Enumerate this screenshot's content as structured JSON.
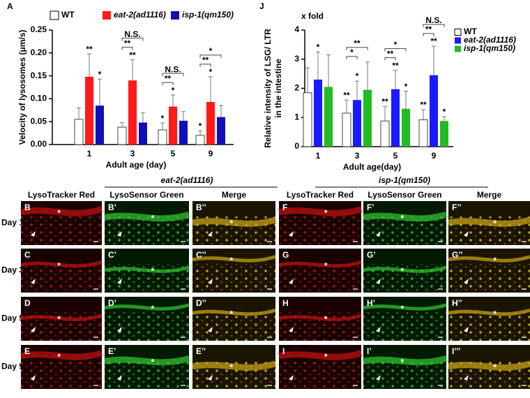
{
  "chart_data": [
    {
      "type": "bar",
      "panel": "A",
      "y_label": "Velocity of lysosomes (μm/s)",
      "x_label": "Adult age (day)",
      "categories": [
        "1",
        "3",
        "5",
        "9"
      ],
      "ylim": [
        0,
        0.25
      ],
      "yticks": [
        {
          "value": 0,
          "label": "0.00"
        },
        {
          "value": 0.05,
          "label": "0.05"
        },
        {
          "value": 0.1,
          "label": "0.10"
        },
        {
          "value": 0.15,
          "label": "0.15"
        },
        {
          "value": 0.2,
          "label": "0.20"
        },
        {
          "value": 0.25,
          "label": "0.25"
        }
      ],
      "legend": "top",
      "series": [
        {
          "name": "WT",
          "color": "#ffffff",
          "values": [
            0.055,
            0.038,
            0.032,
            0.02
          ],
          "errors": [
            0.025,
            0.01,
            0.015,
            0.01
          ],
          "stars": [
            null,
            null,
            "*",
            "*"
          ]
        },
        {
          "name": "eat-2(ad1116)",
          "color": "#ff1a1a",
          "values": [
            0.148,
            0.14,
            0.083,
            0.093
          ],
          "errors": [
            0.05,
            0.045,
            0.025,
            0.055
          ],
          "stars": [
            "**",
            "**",
            "*",
            "*"
          ]
        },
        {
          "name": "isp-1(qm150)",
          "color": "#1010b8",
          "values": [
            0.085,
            0.048,
            0.052,
            0.06
          ],
          "errors": [
            0.058,
            0.022,
            0.02,
            0.025
          ],
          "stars": [
            "*",
            null,
            null,
            null
          ]
        }
      ],
      "brackets": [
        {
          "category": "3",
          "from": "WT",
          "to": "eat-2(ad1116)",
          "label": "**"
        },
        {
          "category": "3",
          "from": "WT",
          "to": "isp-1(qm150)",
          "label": "N.S."
        },
        {
          "category": "5",
          "from": "WT",
          "to": "eat-2(ad1116)",
          "label": "**"
        },
        {
          "category": "5",
          "from": "WT",
          "to": "isp-1(qm150)",
          "label": "N.S."
        },
        {
          "category": "9",
          "from": "WT",
          "to": "eat-2(ad1116)",
          "label": "**"
        },
        {
          "category": "9",
          "from": "WT",
          "to": "isp-1(qm150)",
          "label": "*"
        }
      ]
    },
    {
      "type": "bar",
      "panel": "J",
      "annotation": "x fold",
      "y_label": [
        "Relative intensity of LSG/ LTR",
        "in the intestine"
      ],
      "x_label": "Adult  age(day)",
      "categories": [
        "1",
        "3",
        "5",
        "9"
      ],
      "ylim": [
        0,
        4
      ],
      "yticks": [
        0,
        1,
        2,
        3,
        4
      ],
      "legend": "right",
      "series": [
        {
          "name": "WT",
          "color": "#ffffff",
          "values": [
            1.85,
            1.15,
            0.88,
            0.92
          ],
          "errors": [
            0.85,
            0.45,
            0.5,
            0.35
          ],
          "stars": [
            null,
            "**",
            "**",
            "**"
          ]
        },
        {
          "name": "eat-2(ad1116)",
          "color": "#1a1aff",
          "values": [
            2.3,
            1.6,
            1.97,
            2.45
          ],
          "errors": [
            0.95,
            0.65,
            0.65,
            1.0
          ],
          "stars": [
            "*",
            "*",
            "**",
            "**"
          ]
        },
        {
          "name": "isp-1(qm150)",
          "color": "#22bb22",
          "values": [
            2.05,
            1.95,
            1.3,
            0.88
          ],
          "errors": [
            1.1,
            0.95,
            0.6,
            0.15
          ],
          "stars": [
            null,
            null,
            "*",
            "*"
          ]
        }
      ],
      "brackets": [
        {
          "category": "3",
          "from": "WT",
          "to": "eat-2(ad1116)",
          "label": "*"
        },
        {
          "category": "3",
          "from": "WT",
          "to": "isp-1(qm150)",
          "label": "**"
        },
        {
          "category": "5",
          "from": "WT",
          "to": "eat-2(ad1116)",
          "label": "**"
        },
        {
          "category": "5",
          "from": "WT",
          "to": "isp-1(qm150)",
          "label": "*"
        },
        {
          "category": "9",
          "from": "WT",
          "to": "eat-2(ad1116)",
          "label": "**"
        },
        {
          "category": "9",
          "from": "WT",
          "to": "isp-1(qm150)",
          "label": "N.S."
        }
      ]
    }
  ],
  "micrographs": {
    "left_strain": "eat-2(ad1116)",
    "right_strain": "isp-1(qm150)",
    "columns": [
      "LysoTracker Red",
      "LysoSensor Green",
      "Merge",
      "LysoTracker Red",
      "LysoSensor Green",
      "Merge"
    ],
    "rows": [
      "Day 1",
      "Day 3",
      "Day 5",
      "Day 9"
    ],
    "panel_labels": [
      [
        "B",
        "B’",
        "B’’",
        "F",
        "F’",
        "F’’"
      ],
      [
        "C",
        "C’",
        "C’’",
        "G",
        "G’",
        "G’’"
      ],
      [
        "D",
        "D’",
        "D’’",
        "H",
        "H’",
        "H’’"
      ],
      [
        "E",
        "E’",
        "E’’",
        "I",
        "I’",
        "I’’’"
      ]
    ],
    "marker": "*"
  }
}
